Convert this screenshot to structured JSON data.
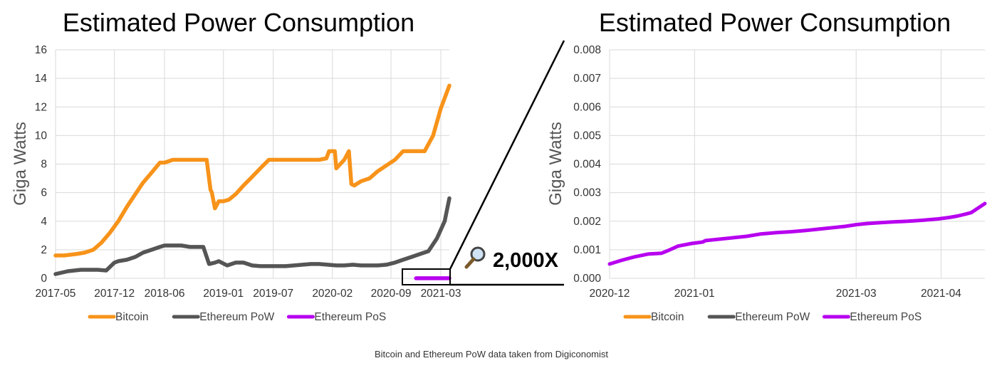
{
  "zoom_label": "2,000X",
  "source_note": "Bitcoin and Ethereum PoW data taken from Digiconomist",
  "colors": {
    "bitcoin": "#f7931a",
    "eth_pow": "#555555",
    "eth_pos": "#b700ef",
    "grid": "#d9d9d9"
  },
  "icons": {
    "zoom": "magnifying-glass-icon"
  },
  "chart_data": [
    {
      "type": "line",
      "title": "Estimated Power Consumption",
      "ylabel": "Giga Watts",
      "xlabel": "",
      "ylim": [
        0,
        16
      ],
      "yticks": [
        "0",
        "2",
        "4",
        "6",
        "8",
        "10",
        "12",
        "14",
        "16"
      ],
      "xlim": [
        "2017-05",
        "2021-04"
      ],
      "xticks": [
        "2017-05",
        "2017-12",
        "2018-06",
        "2019-01",
        "2019-07",
        "2020-02",
        "2020-09",
        "2021-03"
      ],
      "grid": true,
      "legend": "bottom",
      "series": [
        {
          "name": "Bitcoin",
          "x": [
            "2017-05-01",
            "2017-06-01",
            "2017-07-15",
            "2017-08-15",
            "2017-09-15",
            "2017-10-15",
            "2017-11-15",
            "2017-12-15",
            "2018-01-15",
            "2018-02-15",
            "2018-03-15",
            "2018-04-15",
            "2018-05-15",
            "2018-06-01",
            "2018-07-01",
            "2018-08-01",
            "2018-09-01",
            "2018-10-01",
            "2018-11-01",
            "2018-11-15",
            "2018-11-20",
            "2018-12-01",
            "2018-12-15",
            "2019-01-01",
            "2019-01-20",
            "2019-02-15",
            "2019-03-15",
            "2019-04-15",
            "2019-05-15",
            "2019-06-15",
            "2019-07-15",
            "2019-08-15",
            "2019-09-15",
            "2019-10-15",
            "2019-11-15",
            "2019-12-15",
            "2020-01-10",
            "2020-01-20",
            "2020-02-10",
            "2020-02-15",
            "2020-03-15",
            "2020-04-01",
            "2020-04-10",
            "2020-04-20",
            "2020-05-15",
            "2020-06-15",
            "2020-07-15",
            "2020-08-15",
            "2020-09-15",
            "2020-10-15",
            "2020-11-15",
            "2020-12-15",
            "2021-01-01",
            "2021-02-01",
            "2021-03-01",
            "2021-04-01"
          ],
          "y": [
            1.6,
            1.6,
            1.7,
            1.8,
            2.0,
            2.5,
            3.2,
            4.0,
            5.0,
            5.9,
            6.7,
            7.4,
            8.1,
            8.1,
            8.3,
            8.3,
            8.3,
            8.3,
            8.3,
            6.2,
            6.0,
            4.9,
            5.4,
            5.4,
            5.5,
            5.9,
            6.5,
            7.1,
            7.7,
            8.3,
            8.3,
            8.3,
            8.3,
            8.3,
            8.3,
            8.3,
            8.4,
            8.9,
            8.9,
            7.7,
            8.3,
            8.9,
            6.6,
            6.5,
            6.8,
            7.0,
            7.5,
            7.9,
            8.3,
            8.9,
            8.9,
            8.9,
            8.9,
            10.0,
            11.9,
            13.5
          ]
        },
        {
          "name": "Ethereum PoW",
          "x": [
            "2017-05-01",
            "2017-06-15",
            "2017-08-01",
            "2017-10-01",
            "2017-11-01",
            "2017-12-01",
            "2017-12-15",
            "2018-01-15",
            "2018-02-15",
            "2018-03-15",
            "2018-04-15",
            "2018-05-15",
            "2018-06-01",
            "2018-07-01",
            "2018-08-01",
            "2018-09-01",
            "2018-10-01",
            "2018-10-20",
            "2018-11-01",
            "2018-11-10",
            "2018-12-01",
            "2018-12-15",
            "2019-01-15",
            "2019-02-15",
            "2019-03-15",
            "2019-04-15",
            "2019-05-15",
            "2019-06-15",
            "2019-07-15",
            "2019-08-15",
            "2019-09-15",
            "2019-10-15",
            "2019-11-15",
            "2019-12-15",
            "2020-01-15",
            "2020-02-15",
            "2020-03-15",
            "2020-04-15",
            "2020-05-15",
            "2020-06-15",
            "2020-07-15",
            "2020-08-15",
            "2020-09-15",
            "2020-10-15",
            "2020-11-15",
            "2020-12-15",
            "2021-01-15",
            "2021-02-15",
            "2021-03-15",
            "2021-04-01"
          ],
          "y": [
            0.3,
            0.5,
            0.6,
            0.6,
            0.55,
            1.1,
            1.2,
            1.3,
            1.5,
            1.8,
            2.0,
            2.2,
            2.3,
            2.3,
            2.3,
            2.2,
            2.2,
            2.2,
            1.5,
            1.0,
            1.1,
            1.2,
            0.9,
            1.1,
            1.1,
            0.9,
            0.85,
            0.85,
            0.85,
            0.85,
            0.9,
            0.95,
            1.0,
            1.0,
            0.95,
            0.9,
            0.9,
            0.95,
            0.9,
            0.9,
            0.9,
            0.95,
            1.1,
            1.3,
            1.5,
            1.7,
            1.9,
            2.8,
            4.0,
            5.6
          ]
        },
        {
          "name": "Ethereum PoS",
          "x": [
            "2020-12-01",
            "2021-04-01"
          ],
          "y": [
            0.0026,
            0.0026
          ]
        }
      ]
    },
    {
      "type": "line",
      "title": "Estimated Power Consumption",
      "ylabel": "Giga Watts",
      "xlabel": "",
      "ylim": [
        0,
        0.008
      ],
      "yticks": [
        "0.000",
        "0.001",
        "0.002",
        "0.003",
        "0.004",
        "0.005",
        "0.006",
        "0.007",
        "0.008"
      ],
      "xlim": [
        "2020-12-01",
        "2021-04-17"
      ],
      "xticks": [
        "2020-12",
        "2021-01",
        "2021-03",
        "2021-04"
      ],
      "grid": true,
      "legend": "bottom",
      "series": [
        {
          "name": "Bitcoin",
          "x": [],
          "y": []
        },
        {
          "name": "Ethereum PoW",
          "x": [],
          "y": []
        },
        {
          "name": "Ethereum PoS",
          "x": [
            "2020-12-01",
            "2020-12-05",
            "2020-12-10",
            "2020-12-15",
            "2020-12-20",
            "2020-12-23",
            "2020-12-26",
            "2020-12-31",
            "2021-01-04",
            "2021-01-05",
            "2021-01-10",
            "2021-01-15",
            "2021-01-20",
            "2021-01-25",
            "2021-01-31",
            "2021-02-05",
            "2021-02-10",
            "2021-02-15",
            "2021-02-20",
            "2021-02-25",
            "2021-03-01",
            "2021-03-05",
            "2021-03-10",
            "2021-03-15",
            "2021-03-20",
            "2021-03-25",
            "2021-03-31",
            "2021-04-04",
            "2021-04-07",
            "2021-04-10",
            "2021-04-12",
            "2021-04-17"
          ],
          "y": [
            0.0005,
            0.00062,
            0.00075,
            0.00085,
            0.00088,
            0.001,
            0.00113,
            0.00122,
            0.00127,
            0.00132,
            0.00137,
            0.00142,
            0.00147,
            0.00155,
            0.0016,
            0.00163,
            0.00167,
            0.00172,
            0.00177,
            0.00182,
            0.00188,
            0.00192,
            0.00195,
            0.00198,
            0.002,
            0.00203,
            0.00208,
            0.00213,
            0.00218,
            0.00225,
            0.0023,
            0.00262
          ]
        }
      ]
    }
  ]
}
